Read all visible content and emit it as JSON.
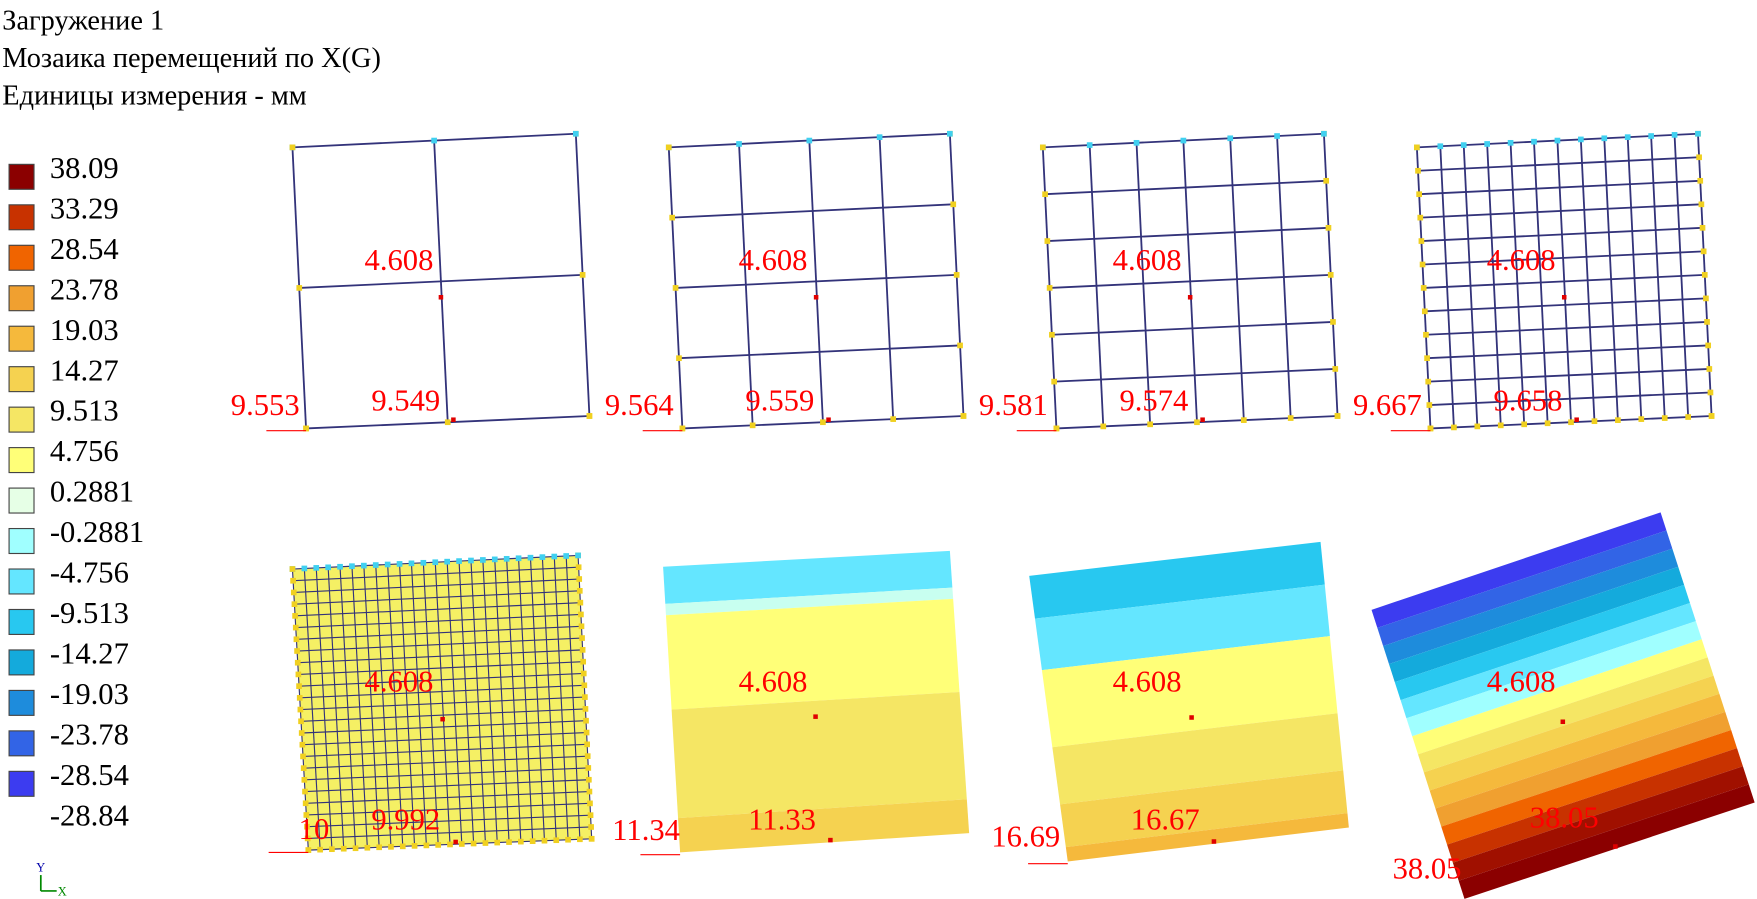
{
  "header": {
    "line1": "Загружение 1",
    "line2": "Мозаика перемещений по X(G)",
    "line3": "Единицы измерения - мм"
  },
  "legend": {
    "items": [
      {
        "label": "38.09",
        "color": "#8b0000"
      },
      {
        "label": "33.29",
        "color": "#c83200"
      },
      {
        "label": "28.54",
        "color": "#f06400"
      },
      {
        "label": "23.78",
        "color": "#f0a030"
      },
      {
        "label": "19.03",
        "color": "#f5b93c"
      },
      {
        "label": "14.27",
        "color": "#f5d250"
      },
      {
        "label": "9.513",
        "color": "#f5e664"
      },
      {
        "label": "4.756",
        "color": "#ffff78"
      },
      {
        "label": "0.2881",
        "color": "#e6ffe6"
      },
      {
        "label": "-0.2881",
        "color": "#a0ffff"
      },
      {
        "label": "-4.756",
        "color": "#64e6ff"
      },
      {
        "label": "-9.513",
        "color": "#28c8f0"
      },
      {
        "label": "-14.27",
        "color": "#14aadc"
      },
      {
        "label": "-19.03",
        "color": "#1e8cdc"
      },
      {
        "label": "-23.78",
        "color": "#3264e6"
      },
      {
        "label": "-28.54",
        "color": "#3c3cf0"
      }
    ],
    "last_label": "-28.84"
  },
  "axis_icon": {
    "y": "Y",
    "x": "X"
  },
  "panels": [
    {
      "center": "4.608",
      "left": "9.553",
      "bottom": "9.549"
    },
    {
      "center": "4.608",
      "left": "9.564",
      "bottom": "9.559"
    },
    {
      "center": "4.608",
      "left": "9.581",
      "bottom": "9.574"
    },
    {
      "center": "4.608",
      "left": "9.667",
      "bottom": "9.658"
    },
    {
      "center": "4.608",
      "left": "10",
      "bottom": "9.992"
    },
    {
      "center": "4.608",
      "left": "11.34",
      "bottom": "11.33"
    },
    {
      "center": "4.608",
      "left": "16.69",
      "bottom": "16.67"
    },
    {
      "center": "4.608",
      "left": "38.05",
      "bottom": "38.05"
    }
  ]
}
